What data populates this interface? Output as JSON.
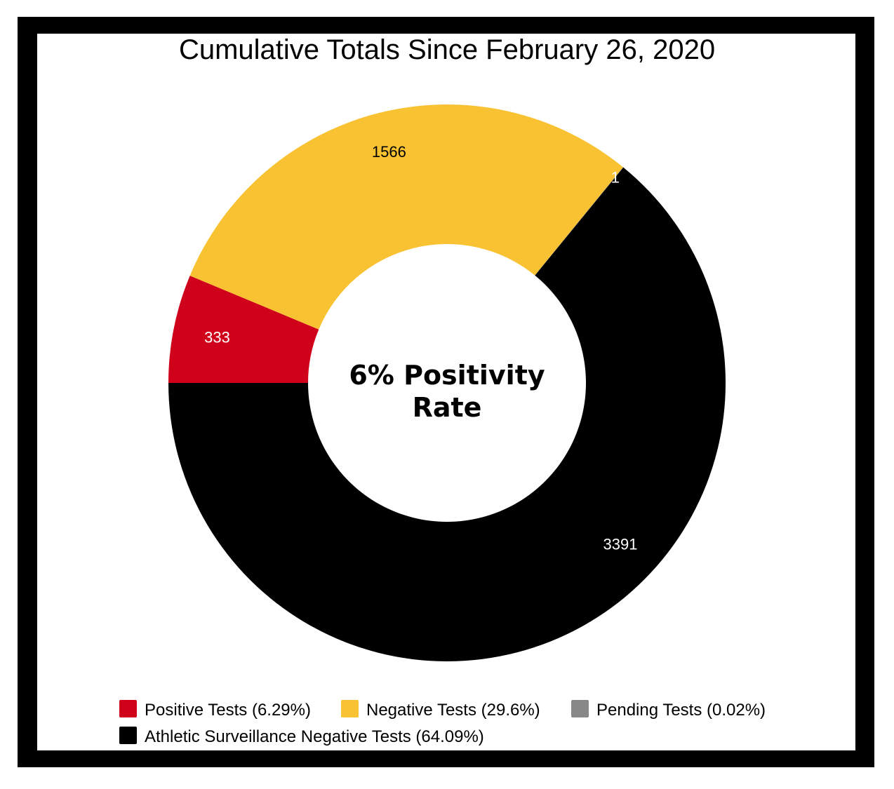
{
  "chart_data": {
    "type": "pie",
    "variant": "donut",
    "title": "Cumulative Totals Since February 26, 2020",
    "center_label": [
      "6% Positivity",
      "Rate"
    ],
    "slices": [
      {
        "name": "Positive Tests (6.29%)",
        "value": 333,
        "label": "333",
        "color": "#d0021b",
        "label_color": "#ffffff"
      },
      {
        "name": "Negative Tests (29.6%)",
        "value": 1566,
        "label": "1566",
        "color": "#f8c232",
        "label_color": "#000000"
      },
      {
        "name": "Pending Tests (0.02%)",
        "value": 1,
        "label": "1",
        "color": "#888888",
        "label_color": "#ffffff"
      },
      {
        "name": "Athletic Surveillance Negative Tests (64.09%)",
        "value": 3391,
        "label": "3391",
        "color": "#000000",
        "label_color": "#ffffff"
      }
    ],
    "legend_position": "bottom",
    "frame_color": "#000000"
  }
}
